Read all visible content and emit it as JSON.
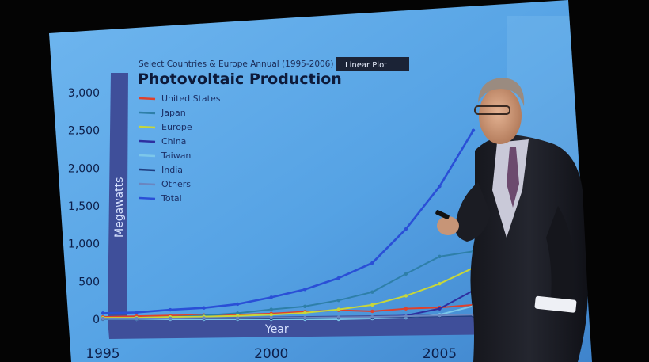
{
  "slide": {
    "subtitle": "Select Countries & Europe Annual (1995-2006)",
    "title": "Photovoltaic Production",
    "badge": "Linear Plot",
    "ylabel": "Megawatts",
    "xlabel": "Year"
  },
  "colors": {
    "screen": "#57a6e6",
    "band": "#3f4f9a",
    "united_states": "#e0412c",
    "japan": "#2e7fa8",
    "europe": "#c7d63a",
    "china": "#2e2fa0",
    "taiwan": "#7cc7ea",
    "india": "#1f3d80",
    "others": "#6a86c0",
    "total": "#2a4fd6"
  },
  "chart_data": {
    "type": "line",
    "title": "Photovoltaic Production",
    "subtitle": "Select Countries & Europe Annual (1995-2006)",
    "xlabel": "Year",
    "ylabel": "Megawatts",
    "xlim": [
      1995,
      2006
    ],
    "ylim": [
      0,
      3000
    ],
    "yticks": [
      "0",
      "500",
      "1,000",
      "1,500",
      "2,000",
      "2,500",
      "3,000"
    ],
    "ytick_values": [
      0,
      500,
      1000,
      1500,
      2000,
      2500,
      3000
    ],
    "xticks": [
      "1995",
      "2000",
      "2005"
    ],
    "xtick_values": [
      1995,
      2000,
      2005
    ],
    "x": [
      1995,
      1996,
      1997,
      1998,
      1999,
      2000,
      2001,
      2002,
      2003,
      2004,
      2005,
      2006
    ],
    "legend_position": "top-left",
    "series": [
      {
        "name": "United States",
        "values": [
          30,
          40,
          50,
          55,
          60,
          75,
          100,
          120,
          105,
          140,
          155,
          190
        ]
      },
      {
        "name": "Japan",
        "values": [
          15,
          20,
          30,
          50,
          80,
          130,
          170,
          250,
          360,
          600,
          830,
          900
        ]
      },
      {
        "name": "Europe",
        "values": [
          20,
          20,
          30,
          35,
          45,
          60,
          85,
          130,
          190,
          310,
          470,
          680
        ]
      },
      {
        "name": "China",
        "values": [
          0,
          0,
          0,
          0,
          0,
          0,
          0,
          10,
          20,
          50,
          140,
          380
        ]
      },
      {
        "name": "Taiwan",
        "values": [
          0,
          0,
          0,
          0,
          0,
          0,
          0,
          0,
          10,
          20,
          60,
          175
        ]
      },
      {
        "name": "India",
        "values": [
          5,
          5,
          10,
          10,
          10,
          10,
          15,
          20,
          20,
          30,
          40,
          45
        ]
      },
      {
        "name": "Others",
        "values": [
          10,
          10,
          10,
          15,
          15,
          20,
          20,
          25,
          30,
          40,
          50,
          60
        ]
      },
      {
        "name": "Total",
        "values": [
          80,
          90,
          125,
          150,
          200,
          290,
          395,
          545,
          745,
          1195,
          1760,
          2500
        ]
      }
    ]
  }
}
